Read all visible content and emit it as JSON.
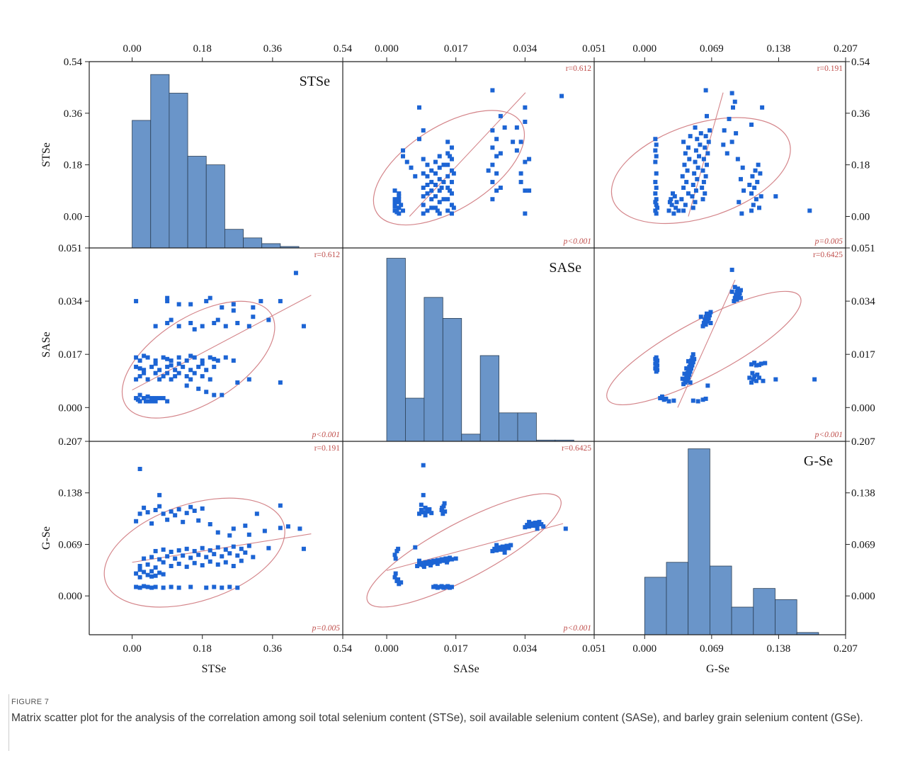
{
  "caption": {
    "label": "FIGURE 7",
    "text": "Matrix scatter plot for the analysis of the correlation among soil total selenium content (STSe), soil available selenium content (SASe), and barley grain selenium content (GSe)."
  },
  "chart_data": {
    "type": "scatter-matrix",
    "variables": [
      "STSe",
      "SASe",
      "G-Se"
    ],
    "axes": {
      "STSe": {
        "ticks": [
          "0.00",
          "0.18",
          "0.36",
          "0.54"
        ],
        "range": [
          -0.11,
          0.54
        ]
      },
      "SASe": {
        "ticks": [
          "0.000",
          "0.017",
          "0.034",
          "0.051"
        ],
        "range": [
          -0.0108,
          0.051
        ]
      },
      "G-Se": {
        "ticks": [
          "0.000",
          "0.069",
          "0.138",
          "0.207"
        ],
        "range": [
          -0.052,
          0.207
        ]
      }
    },
    "correlations": [
      {
        "pair": [
          "STSe",
          "SASe"
        ],
        "r": "r=0.612",
        "p": "p<0.001"
      },
      {
        "pair": [
          "STSe",
          "G-Se"
        ],
        "r": "r=0.191",
        "p": "p=0.005"
      },
      {
        "pair": [
          "SASe",
          "G-Se"
        ],
        "r": "r=0.6425",
        "p": "p<0.001"
      }
    ],
    "histograms": {
      "STSe": {
        "bin_edges": [
          0,
          0.0475,
          0.095,
          0.1425,
          0.19,
          0.2375,
          0.285,
          0.3325,
          0.38,
          0.4275
        ],
        "heights": [
          0.335,
          0.495,
          0.43,
          0.21,
          0.18,
          -0.045,
          -0.075,
          -0.095,
          -0.105
        ]
      },
      "SASe": {
        "bin_edges": [
          0,
          0.0046,
          0.0092,
          0.0138,
          0.0184,
          0.023,
          0.0276,
          0.0322,
          0.0368,
          0.0414,
          0.046
        ],
        "heights": [
          0.0477,
          0.003,
          0.0352,
          0.0285,
          -0.0085,
          0.0166,
          -0.0017,
          -0.0017,
          -0.0104,
          -0.0104
        ]
      },
      "G-Se": {
        "bin_edges": [
          0,
          0.0224,
          0.0448,
          0.0672,
          0.0896,
          0.112,
          0.1344,
          0.1568,
          0.1792
        ],
        "heights": [
          0.025,
          0.045,
          0.197,
          0.04,
          -0.015,
          0.01,
          -0.005,
          -0.049
        ]
      }
    },
    "ellipses": {
      "STSe_SASe": {
        "center": [
          0.17,
          0.0153
        ],
        "rx": 0.22,
        "ry": 0.0138,
        "rotation_deg": -32
      },
      "STSe_GSe": {
        "center": [
          0.16,
          0.058
        ],
        "rx": 0.24,
        "ry": 0.065,
        "rotation_deg": -18
      },
      "SASe_GSe": {
        "center": [
          0.019,
          0.061
        ],
        "rx": 0.0268,
        "ry": 0.037,
        "rotation_deg": -28
      }
    },
    "regression": {
      "STSe_SASe": {
        "slope": 0.066,
        "intercept": 0.0056
      },
      "STSe_GSe": {
        "slope": 0.083,
        "intercept": 0.045
      },
      "SASe_GSe": {
        "slope": 1.45,
        "intercept": 0.034
      }
    },
    "points_STSe_SASe": [
      [
        0.01,
        0.003
      ],
      [
        0.02,
        0.002
      ],
      [
        0.03,
        0.003
      ],
      [
        0.04,
        0.002
      ],
      [
        0.05,
        0.003
      ],
      [
        0.06,
        0.002
      ],
      [
        0.07,
        0.003
      ],
      [
        0.02,
        0.004
      ],
      [
        0.03,
        0.003
      ],
      [
        0.05,
        0.002
      ],
      [
        0.08,
        0.003
      ],
      [
        0.09,
        0.002
      ],
      [
        0.04,
        0.0035
      ],
      [
        0.06,
        0.003
      ],
      [
        0.015,
        0.0025
      ],
      [
        0.035,
        0.002
      ],
      [
        0.01,
        0.009
      ],
      [
        0.02,
        0.01
      ],
      [
        0.04,
        0.009
      ],
      [
        0.06,
        0.011
      ],
      [
        0.08,
        0.01
      ],
      [
        0.1,
        0.009
      ],
      [
        0.12,
        0.011
      ],
      [
        0.14,
        0.01
      ],
      [
        0.16,
        0.011
      ],
      [
        0.18,
        0.01
      ],
      [
        0.2,
        0.009
      ],
      [
        0.03,
        0.011
      ],
      [
        0.07,
        0.009
      ],
      [
        0.11,
        0.01
      ],
      [
        0.15,
        0.009
      ],
      [
        0.09,
        0.011
      ],
      [
        0.01,
        0.013
      ],
      [
        0.03,
        0.012
      ],
      [
        0.05,
        0.013
      ],
      [
        0.07,
        0.012
      ],
      [
        0.09,
        0.013
      ],
      [
        0.11,
        0.012
      ],
      [
        0.13,
        0.013
      ],
      [
        0.15,
        0.012
      ],
      [
        0.17,
        0.013
      ],
      [
        0.19,
        0.012
      ],
      [
        0.21,
        0.013
      ],
      [
        0.06,
        0.014
      ],
      [
        0.12,
        0.014
      ],
      [
        0.18,
        0.014
      ],
      [
        0.02,
        0.0125
      ],
      [
        0.1,
        0.0135
      ],
      [
        0.01,
        0.016
      ],
      [
        0.02,
        0.015
      ],
      [
        0.04,
        0.016
      ],
      [
        0.06,
        0.015
      ],
      [
        0.08,
        0.016
      ],
      [
        0.1,
        0.015
      ],
      [
        0.12,
        0.016
      ],
      [
        0.14,
        0.015
      ],
      [
        0.16,
        0.016
      ],
      [
        0.18,
        0.015
      ],
      [
        0.2,
        0.016
      ],
      [
        0.22,
        0.015
      ],
      [
        0.24,
        0.016
      ],
      [
        0.26,
        0.015
      ],
      [
        0.03,
        0.0165
      ],
      [
        0.09,
        0.0155
      ],
      [
        0.15,
        0.0165
      ],
      [
        0.21,
        0.0155
      ],
      [
        0.17,
        0.006
      ],
      [
        0.19,
        0.005
      ],
      [
        0.23,
        0.004
      ],
      [
        0.27,
        0.008
      ],
      [
        0.3,
        0.009
      ],
      [
        0.38,
        0.008
      ],
      [
        0.14,
        0.007
      ],
      [
        0.21,
        0.004
      ],
      [
        0.06,
        0.026
      ],
      [
        0.09,
        0.027
      ],
      [
        0.12,
        0.026
      ],
      [
        0.15,
        0.027
      ],
      [
        0.18,
        0.026
      ],
      [
        0.21,
        0.027
      ],
      [
        0.24,
        0.026
      ],
      [
        0.27,
        0.027
      ],
      [
        0.3,
        0.026
      ],
      [
        0.35,
        0.028
      ],
      [
        0.1,
        0.028
      ],
      [
        0.16,
        0.025
      ],
      [
        0.22,
        0.028
      ],
      [
        0.01,
        0.034
      ],
      [
        0.09,
        0.034
      ],
      [
        0.12,
        0.033
      ],
      [
        0.15,
        0.033
      ],
      [
        0.19,
        0.034
      ],
      [
        0.23,
        0.032
      ],
      [
        0.26,
        0.033
      ],
      [
        0.31,
        0.032
      ],
      [
        0.33,
        0.034
      ],
      [
        0.38,
        0.034
      ],
      [
        0.09,
        0.035
      ],
      [
        0.2,
        0.035
      ],
      [
        0.44,
        0.026
      ],
      [
        0.42,
        0.043
      ],
      [
        0.31,
        0.029
      ],
      [
        0.26,
        0.031
      ]
    ],
    "points_STSe_GSe": [
      [
        0.01,
        0.012
      ],
      [
        0.02,
        0.011
      ],
      [
        0.03,
        0.013
      ],
      [
        0.04,
        0.012
      ],
      [
        0.05,
        0.011
      ],
      [
        0.06,
        0.012
      ],
      [
        0.08,
        0.011
      ],
      [
        0.1,
        0.012
      ],
      [
        0.12,
        0.011
      ],
      [
        0.15,
        0.012
      ],
      [
        0.19,
        0.011
      ],
      [
        0.21,
        0.012
      ],
      [
        0.23,
        0.011
      ],
      [
        0.25,
        0.012
      ],
      [
        0.27,
        0.011
      ],
      [
        0.01,
        0.03
      ],
      [
        0.02,
        0.025
      ],
      [
        0.03,
        0.032
      ],
      [
        0.04,
        0.028
      ],
      [
        0.05,
        0.033
      ],
      [
        0.06,
        0.027
      ],
      [
        0.07,
        0.031
      ],
      [
        0.08,
        0.029
      ],
      [
        0.02,
        0.035
      ],
      [
        0.05,
        0.026
      ],
      [
        0.02,
        0.04
      ],
      [
        0.04,
        0.042
      ],
      [
        0.06,
        0.038
      ],
      [
        0.08,
        0.045
      ],
      [
        0.1,
        0.04
      ],
      [
        0.12,
        0.043
      ],
      [
        0.14,
        0.039
      ],
      [
        0.16,
        0.044
      ],
      [
        0.18,
        0.041
      ],
      [
        0.2,
        0.046
      ],
      [
        0.22,
        0.042
      ],
      [
        0.24,
        0.045
      ],
      [
        0.26,
        0.04
      ],
      [
        0.28,
        0.047
      ],
      [
        0.03,
        0.05
      ],
      [
        0.05,
        0.052
      ],
      [
        0.07,
        0.049
      ],
      [
        0.09,
        0.053
      ],
      [
        0.11,
        0.05
      ],
      [
        0.13,
        0.054
      ],
      [
        0.15,
        0.051
      ],
      [
        0.17,
        0.055
      ],
      [
        0.19,
        0.052
      ],
      [
        0.21,
        0.056
      ],
      [
        0.23,
        0.053
      ],
      [
        0.25,
        0.057
      ],
      [
        0.27,
        0.054
      ],
      [
        0.29,
        0.058
      ],
      [
        0.31,
        0.052
      ],
      [
        0.06,
        0.06
      ],
      [
        0.08,
        0.062
      ],
      [
        0.1,
        0.059
      ],
      [
        0.12,
        0.061
      ],
      [
        0.14,
        0.063
      ],
      [
        0.16,
        0.06
      ],
      [
        0.18,
        0.064
      ],
      [
        0.2,
        0.061
      ],
      [
        0.22,
        0.065
      ],
      [
        0.24,
        0.062
      ],
      [
        0.26,
        0.066
      ],
      [
        0.28,
        0.063
      ],
      [
        0.3,
        0.067
      ],
      [
        0.35,
        0.064
      ],
      [
        0.02,
        0.11
      ],
      [
        0.04,
        0.112
      ],
      [
        0.06,
        0.115
      ],
      [
        0.08,
        0.11
      ],
      [
        0.1,
        0.113
      ],
      [
        0.12,
        0.116
      ],
      [
        0.14,
        0.111
      ],
      [
        0.16,
        0.114
      ],
      [
        0.18,
        0.117
      ],
      [
        0.03,
        0.118
      ],
      [
        0.07,
        0.12
      ],
      [
        0.11,
        0.108
      ],
      [
        0.15,
        0.119
      ],
      [
        0.01,
        0.1
      ],
      [
        0.05,
        0.097
      ],
      [
        0.09,
        0.102
      ],
      [
        0.13,
        0.099
      ],
      [
        0.17,
        0.101
      ],
      [
        0.22,
        0.085
      ],
      [
        0.26,
        0.09
      ],
      [
        0.3,
        0.082
      ],
      [
        0.34,
        0.087
      ],
      [
        0.38,
        0.091
      ],
      [
        0.2,
        0.096
      ],
      [
        0.25,
        0.081
      ],
      [
        0.38,
        0.121
      ],
      [
        0.4,
        0.093
      ],
      [
        0.43,
        0.09
      ],
      [
        0.44,
        0.063
      ],
      [
        0.07,
        0.135
      ],
      [
        0.02,
        0.17
      ],
      [
        0.32,
        0.11
      ],
      [
        0.29,
        0.094
      ]
    ],
    "points_SASe_GSe": [
      [
        0.002,
        0.025
      ],
      [
        0.0025,
        0.02
      ],
      [
        0.003,
        0.016
      ],
      [
        0.0022,
        0.03
      ],
      [
        0.0035,
        0.018
      ],
      [
        0.0028,
        0.022
      ],
      [
        0.0075,
        0.04
      ],
      [
        0.008,
        0.042
      ],
      [
        0.0085,
        0.044
      ],
      [
        0.009,
        0.041
      ],
      [
        0.0095,
        0.045
      ],
      [
        0.01,
        0.043
      ],
      [
        0.0105,
        0.046
      ],
      [
        0.011,
        0.044
      ],
      [
        0.0115,
        0.047
      ],
      [
        0.012,
        0.045
      ],
      [
        0.0125,
        0.048
      ],
      [
        0.013,
        0.046
      ],
      [
        0.0135,
        0.049
      ],
      [
        0.014,
        0.047
      ],
      [
        0.0145,
        0.05
      ],
      [
        0.015,
        0.048
      ],
      [
        0.0155,
        0.051
      ],
      [
        0.016,
        0.049
      ],
      [
        0.008,
        0.047
      ],
      [
        0.0092,
        0.039
      ],
      [
        0.0108,
        0.041
      ],
      [
        0.0125,
        0.043
      ],
      [
        0.0148,
        0.045
      ],
      [
        0.017,
        0.05
      ],
      [
        0.0115,
        0.012
      ],
      [
        0.012,
        0.013
      ],
      [
        0.0125,
        0.011
      ],
      [
        0.013,
        0.012
      ],
      [
        0.0135,
        0.013
      ],
      [
        0.014,
        0.011
      ],
      [
        0.0145,
        0.012
      ],
      [
        0.015,
        0.013
      ],
      [
        0.0155,
        0.011
      ],
      [
        0.016,
        0.012
      ],
      [
        0.008,
        0.11
      ],
      [
        0.0085,
        0.115
      ],
      [
        0.009,
        0.112
      ],
      [
        0.0095,
        0.118
      ],
      [
        0.01,
        0.113
      ],
      [
        0.0105,
        0.116
      ],
      [
        0.011,
        0.111
      ],
      [
        0.0085,
        0.122
      ],
      [
        0.0095,
        0.108
      ],
      [
        0.0135,
        0.115
      ],
      [
        0.014,
        0.12
      ],
      [
        0.0138,
        0.11
      ],
      [
        0.0142,
        0.124
      ],
      [
        0.0136,
        0.118
      ],
      [
        0.0143,
        0.113
      ],
      [
        0.002,
        0.055
      ],
      [
        0.0025,
        0.06
      ],
      [
        0.0022,
        0.05
      ],
      [
        0.0028,
        0.063
      ],
      [
        0.026,
        0.06
      ],
      [
        0.0265,
        0.063
      ],
      [
        0.027,
        0.061
      ],
      [
        0.0275,
        0.065
      ],
      [
        0.028,
        0.062
      ],
      [
        0.0285,
        0.066
      ],
      [
        0.029,
        0.063
      ],
      [
        0.0295,
        0.067
      ],
      [
        0.03,
        0.064
      ],
      [
        0.0305,
        0.068
      ],
      [
        0.027,
        0.068
      ],
      [
        0.029,
        0.058
      ],
      [
        0.034,
        0.092
      ],
      [
        0.0345,
        0.095
      ],
      [
        0.035,
        0.093
      ],
      [
        0.0355,
        0.097
      ],
      [
        0.036,
        0.094
      ],
      [
        0.0365,
        0.098
      ],
      [
        0.037,
        0.095
      ],
      [
        0.0375,
        0.099
      ],
      [
        0.038,
        0.096
      ],
      [
        0.0385,
        0.093
      ],
      [
        0.035,
        0.099
      ],
      [
        0.037,
        0.09
      ],
      [
        0.044,
        0.09
      ],
      [
        0.009,
        0.175
      ],
      [
        0.009,
        0.135
      ],
      [
        0.007,
        0.065
      ]
    ]
  }
}
